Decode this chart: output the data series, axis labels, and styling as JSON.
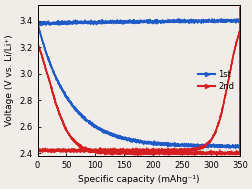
{
  "title": "",
  "xlabel": "Specific capacity (mAhg⁻¹)",
  "ylabel": "Voltage (V vs. Li/Li⁺)",
  "xlim": [
    0,
    350
  ],
  "ylim": [
    2.38,
    3.52
  ],
  "yticks": [
    2.4,
    2.6,
    2.8,
    3.0,
    3.2,
    3.4
  ],
  "xticks": [
    0,
    50,
    100,
    150,
    200,
    250,
    300,
    350
  ],
  "legend_entries": [
    "1st",
    "2nd"
  ],
  "blue_color": "#1e5bc6",
  "red_color": "#d42020",
  "background_color": "#f0ece8",
  "figsize": [
    2.53,
    1.89
  ],
  "dpi": 100
}
